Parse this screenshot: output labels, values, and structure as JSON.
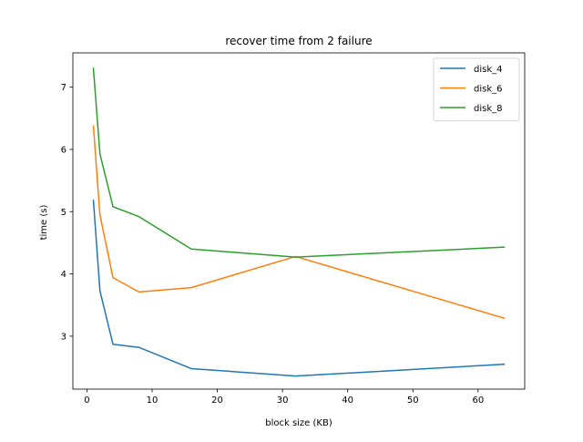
{
  "chart_data": {
    "type": "line",
    "title": "recover time from 2 failure",
    "xlabel": "block size (KB)",
    "ylabel": "time (s)",
    "xlim": [
      -2.15,
      67.15
    ],
    "ylim": [
      2.15,
      7.55
    ],
    "xticks": [
      0,
      10,
      20,
      30,
      40,
      50,
      60
    ],
    "yticks": [
      3,
      4,
      5,
      6,
      7
    ],
    "grid": false,
    "legend_position": "top-right",
    "x": [
      1,
      2,
      4,
      8,
      16,
      32,
      64
    ],
    "series": [
      {
        "name": "disk_4",
        "color": "#1f77b4",
        "values": [
          5.18,
          3.73,
          2.87,
          2.82,
          2.48,
          2.36,
          2.55
        ]
      },
      {
        "name": "disk_6",
        "color": "#ff7f0e",
        "values": [
          6.37,
          4.95,
          3.94,
          3.71,
          3.78,
          4.28,
          3.29
        ]
      },
      {
        "name": "disk_8",
        "color": "#2ca02c",
        "values": [
          7.3,
          5.93,
          5.08,
          4.92,
          4.4,
          4.27,
          4.43
        ]
      }
    ]
  }
}
